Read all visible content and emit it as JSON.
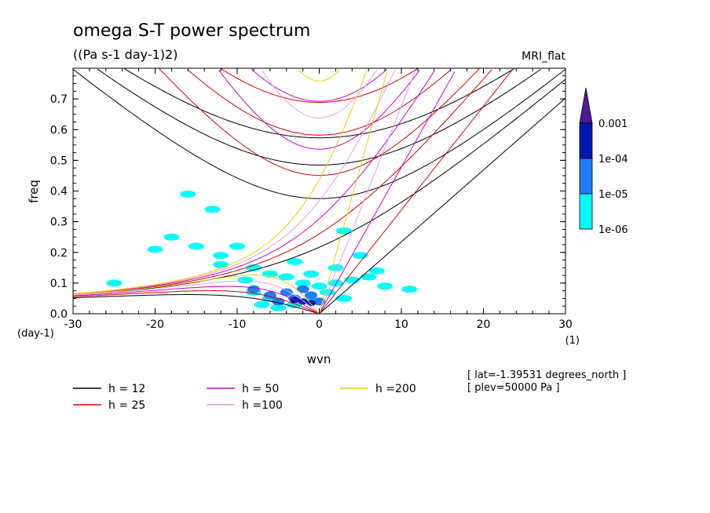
{
  "chart_data": {
    "type": "line",
    "title": "omega S-T power spectrum",
    "subtitle": "((Pa s-1 day-1)2)",
    "model_label": "MRI_flat",
    "xlabel": "wvn",
    "x_unit": "(1)",
    "ylabel": "freq",
    "y_unit": "(day-1)",
    "xlim": [
      -30,
      30
    ],
    "ylim": [
      0,
      0.8
    ],
    "x_ticks": [
      -30,
      -20,
      -10,
      0,
      10,
      20,
      30
    ],
    "x_tick_labels": [
      "-30",
      "-20",
      "-10",
      "0",
      "10",
      "20",
      "30"
    ],
    "y_ticks": [
      0.0,
      0.1,
      0.2,
      0.3,
      0.4,
      0.5,
      0.6,
      0.7
    ],
    "y_tick_labels": [
      "0.0",
      "0.1",
      "0.2",
      "0.3",
      "0.4",
      "0.5",
      "0.6",
      "0.7"
    ],
    "series": [
      {
        "name": "h = 12",
        "h": 12,
        "color": "#000000"
      },
      {
        "name": "h = 25",
        "h": 25,
        "color": "#e00000"
      },
      {
        "name": "h = 50",
        "h": 50,
        "color": "#d000d0"
      },
      {
        "name": "h =100",
        "h": 100,
        "color": "#e6a0e6"
      },
      {
        "name": "h =200",
        "h": 200,
        "color": "#f0d000"
      }
    ],
    "colorbar": {
      "labels": [
        "0.001",
        "1e-04",
        "1e-05",
        "1e-06"
      ],
      "colors": [
        "#4b1a9e",
        "#0018b0",
        "#1e7cff",
        "#00ffff"
      ]
    },
    "contours": [
      {
        "level": 1e-06,
        "cells": [
          [
            -2,
            0.1
          ],
          [
            0,
            0.09
          ],
          [
            2,
            0.1
          ],
          [
            -4,
            0.12
          ],
          [
            4,
            0.11
          ],
          [
            -6,
            0.13
          ],
          [
            6,
            0.12
          ],
          [
            -8,
            0.15
          ],
          [
            -3,
            0.17
          ],
          [
            2,
            0.15
          ],
          [
            -10,
            0.22
          ],
          [
            -15,
            0.22
          ],
          [
            -18,
            0.25
          ],
          [
            5,
            0.19
          ],
          [
            -12,
            0.19
          ],
          [
            -20,
            0.21
          ],
          [
            -25,
            0.1
          ],
          [
            -8,
            0.07
          ],
          [
            -6,
            0.05
          ],
          [
            -1,
            0.04
          ],
          [
            -3,
            0.03
          ],
          [
            -5,
            0.02
          ],
          [
            8,
            0.09
          ],
          [
            3,
            0.05
          ],
          [
            1,
            0.07
          ],
          [
            -16,
            0.39
          ],
          [
            -13,
            0.34
          ],
          [
            -12,
            0.16
          ],
          [
            7,
            0.14
          ],
          [
            11,
            0.08
          ],
          [
            -7,
            0.03
          ],
          [
            3,
            0.27
          ],
          [
            -1,
            0.13
          ],
          [
            -9,
            0.11
          ]
        ]
      },
      {
        "level": 1e-05,
        "cells": [
          [
            -3,
            0.05
          ],
          [
            -1,
            0.06
          ],
          [
            -5,
            0.04
          ],
          [
            0,
            0.04
          ],
          [
            -2,
            0.08
          ],
          [
            -4,
            0.07
          ],
          [
            -6,
            0.06
          ],
          [
            -8,
            0.08
          ]
        ]
      },
      {
        "level": 0.0001,
        "cells": [
          [
            -2,
            0.04
          ],
          [
            -3,
            0.045
          ],
          [
            -1,
            0.035
          ]
        ]
      }
    ],
    "annotations": [
      "[ lat=-1.39531 degrees_north ]",
      "[ plev=50000 Pa ]"
    ]
  }
}
